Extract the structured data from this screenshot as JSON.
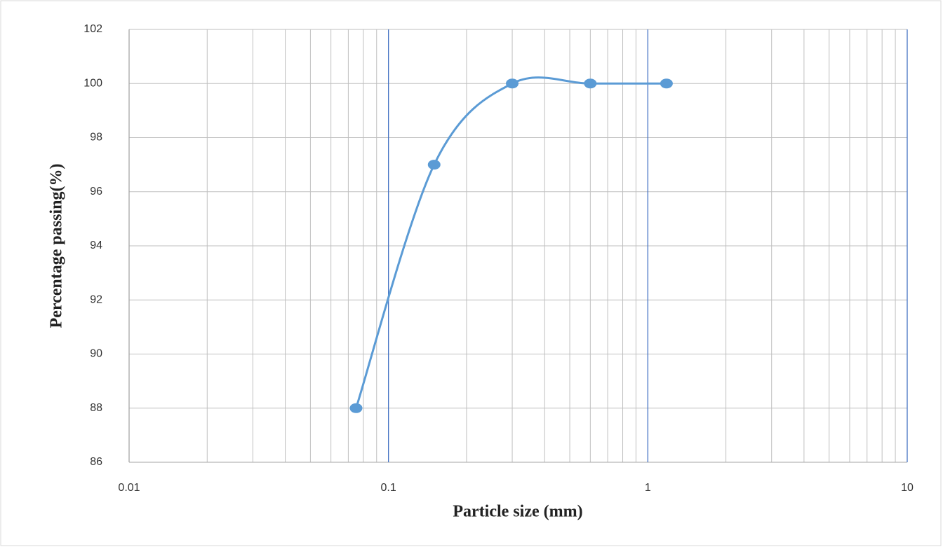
{
  "chart_data": {
    "type": "line",
    "x": [
      0.075,
      0.15,
      0.3,
      0.6,
      1.18
    ],
    "values": [
      88,
      97,
      100,
      100,
      100
    ],
    "color": "#5b9bd5",
    "xlabel": "Particle size (mm)",
    "ylabel": "Percentage passing(%)",
    "xlim": [
      0.01,
      10
    ],
    "xticks": [
      0.01,
      0.1,
      1,
      10
    ],
    "xlog": true,
    "ylim": [
      86,
      102
    ],
    "yticks": [
      86,
      88,
      90,
      92,
      94,
      96,
      98,
      100,
      102
    ],
    "grid": true
  }
}
